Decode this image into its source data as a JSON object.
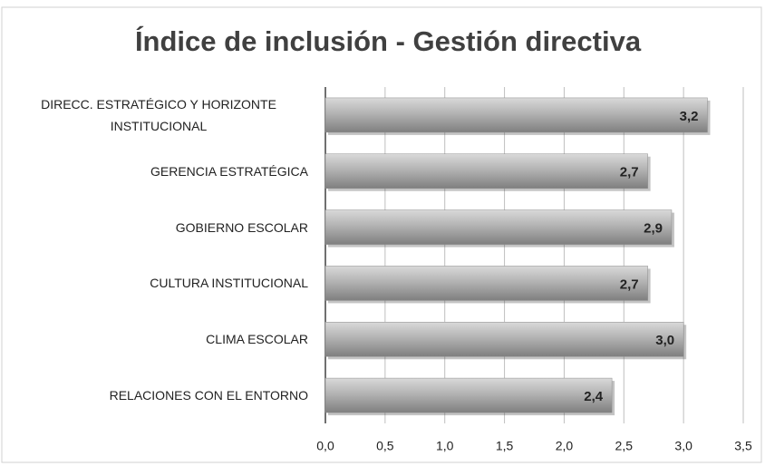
{
  "chart_data": {
    "type": "barh",
    "title": "Índice de inclusión - Gestión directiva",
    "categories": [
      "DIRECC. ESTRATÉGICO Y HORIZONTE INSTITUCIONAL",
      "GERENCIA ESTRATÉGICA",
      "GOBIERNO ESCOLAR",
      "CULTURA INSTITUCIONAL",
      "CLIMA ESCOLAR",
      "RELACIONES CON EL ENTORNO"
    ],
    "values": [
      3.2,
      2.7,
      2.9,
      2.7,
      3.0,
      2.4
    ],
    "value_labels": [
      "3,2",
      "2,7",
      "2,9",
      "2,7",
      "3,0",
      "2,4"
    ],
    "color": "#a6a6a6",
    "xlim": [
      0,
      3.5
    ],
    "xticks": [
      {
        "value": 0,
        "label": "0,0"
      },
      {
        "value": 0.5,
        "label": "0,5"
      },
      {
        "value": 1,
        "label": "1,0"
      },
      {
        "value": 1.5,
        "label": "1,5"
      },
      {
        "value": 2,
        "label": "2,0"
      },
      {
        "value": 2.5,
        "label": "2,5"
      },
      {
        "value": 3,
        "label": "3,0"
      },
      {
        "value": 3.5,
        "label": "3,5"
      }
    ],
    "grid": true
  }
}
